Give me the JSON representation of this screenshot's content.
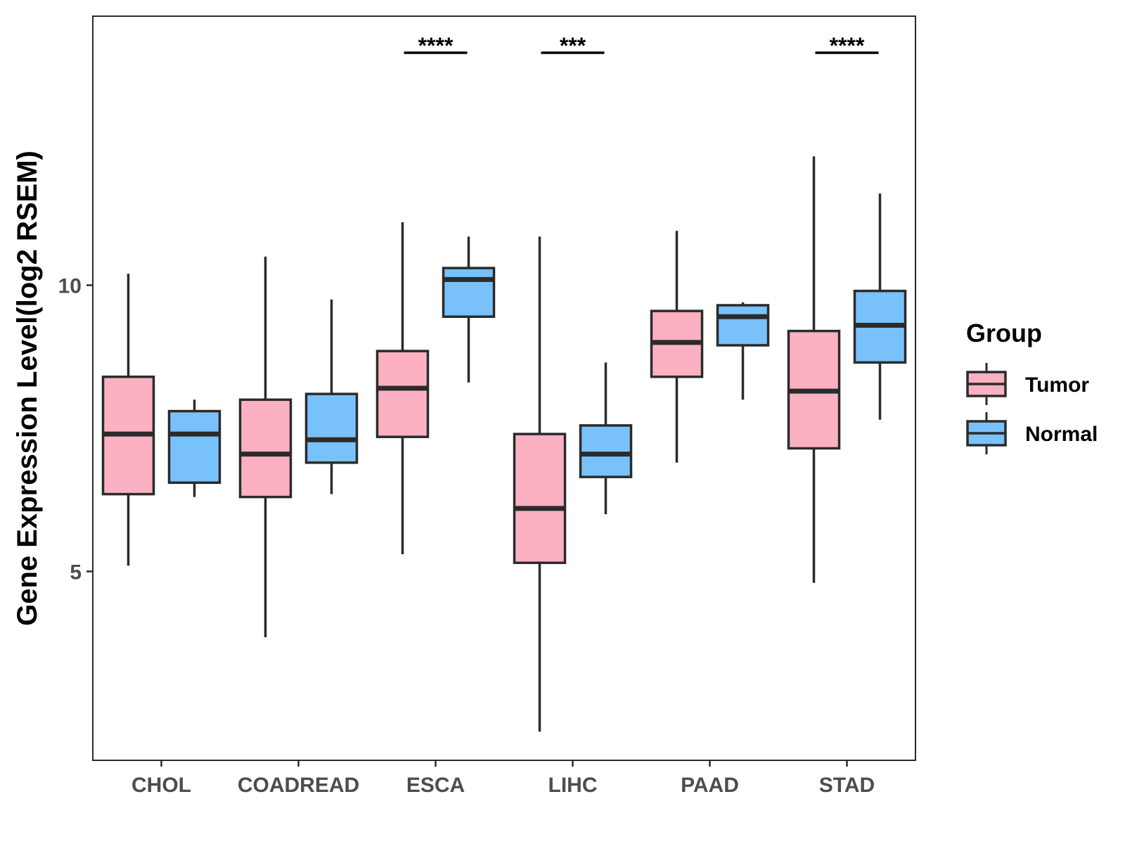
{
  "chart_data": {
    "type": "boxplot",
    "ylabel": "Gene Expression Level(log2 RSEM)",
    "xlabel": "",
    "categories": [
      "CHOL",
      "COADREAD",
      "ESCA",
      "LIHC",
      "PAAD",
      "STAD"
    ],
    "yticks": [
      5,
      10
    ],
    "ylim": [
      1.7,
      14.7
    ],
    "legend": {
      "title": "Group",
      "position": "right",
      "items": [
        {
          "name": "Tumor",
          "color": "#fbb1c2"
        },
        {
          "name": "Normal",
          "color": "#79c1fa"
        }
      ]
    },
    "series": [
      {
        "name": "Tumor",
        "color": "#fbb1c2",
        "boxes": [
          {
            "min": 5.1,
            "q1": 6.35,
            "median": 7.4,
            "q3": 8.4,
            "max": 10.2
          },
          {
            "min": 3.85,
            "q1": 6.3,
            "median": 7.05,
            "q3": 8.0,
            "max": 10.5
          },
          {
            "min": 5.3,
            "q1": 7.35,
            "median": 8.2,
            "q3": 8.85,
            "max": 11.1
          },
          {
            "min": 2.2,
            "q1": 5.15,
            "median": 6.1,
            "q3": 7.4,
            "max": 10.85
          },
          {
            "min": 6.9,
            "q1": 8.4,
            "median": 9.0,
            "q3": 9.55,
            "max": 10.95
          },
          {
            "min": 4.8,
            "q1": 7.15,
            "median": 8.15,
            "q3": 9.2,
            "max": 12.25
          }
        ]
      },
      {
        "name": "Normal",
        "color": "#79c1fa",
        "boxes": [
          {
            "min": 6.3,
            "q1": 6.55,
            "median": 7.4,
            "q3": 7.8,
            "max": 8.0
          },
          {
            "min": 6.35,
            "q1": 6.9,
            "median": 7.3,
            "q3": 8.1,
            "max": 9.75
          },
          {
            "min": 8.3,
            "q1": 9.45,
            "median": 10.1,
            "q3": 10.3,
            "max": 10.85
          },
          {
            "min": 6.0,
            "q1": 6.65,
            "median": 7.05,
            "q3": 7.55,
            "max": 8.65
          },
          {
            "min": 8.0,
            "q1": 8.95,
            "median": 9.45,
            "q3": 9.65,
            "max": 9.7
          },
          {
            "min": 7.65,
            "q1": 8.65,
            "median": 9.3,
            "q3": 9.9,
            "max": 11.6
          }
        ]
      }
    ],
    "annotations": [
      {
        "category": "ESCA",
        "label": "****"
      },
      {
        "category": "LIHC",
        "label": "***"
      },
      {
        "category": "STAD",
        "label": "****"
      }
    ]
  }
}
